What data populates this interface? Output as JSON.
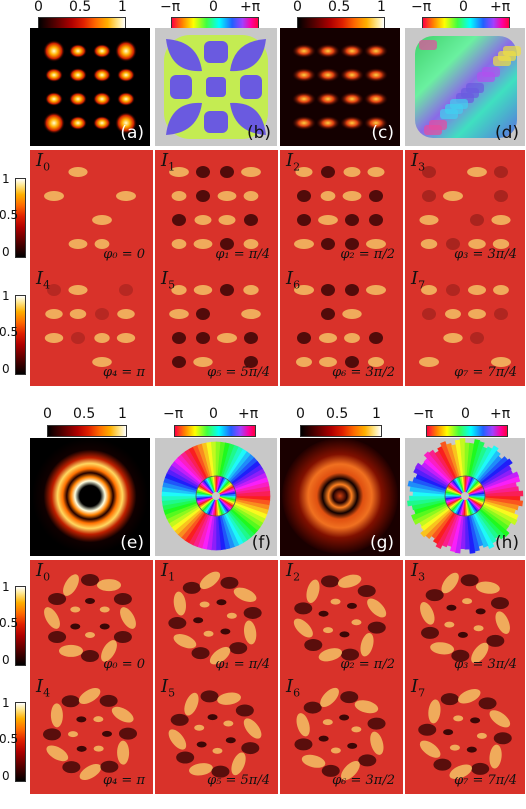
{
  "colorbars": {
    "intensity": {
      "min": "0",
      "mid": "0.5",
      "max": "1"
    },
    "phase": {
      "min": "−π",
      "mid": "0",
      "max": "+π"
    }
  },
  "vertical_colorbar": {
    "top": "1",
    "mid": "0.5",
    "bottom": "0"
  },
  "top_panels": {
    "a": "(a)",
    "b": "(b)",
    "c": "(c)",
    "d": "(d)"
  },
  "bottom_panels": {
    "e": "(e)",
    "f": "(f)",
    "g": "(g)",
    "h": "(h)"
  },
  "tiles": [
    {
      "name": "I",
      "sub": "0",
      "phase": "φ₀ = 0"
    },
    {
      "name": "I",
      "sub": "1",
      "phase": "φ₁ = π/4"
    },
    {
      "name": "I",
      "sub": "2",
      "phase": "φ₂ = π/2"
    },
    {
      "name": "I",
      "sub": "3",
      "phase": "φ₃ = 3π/4"
    },
    {
      "name": "I",
      "sub": "4",
      "phase": "φ₄ = π"
    },
    {
      "name": "I",
      "sub": "5",
      "phase": "φ₅ = 5π/4"
    },
    {
      "name": "I",
      "sub": "6",
      "phase": "φ₆ = 3π/2"
    },
    {
      "name": "I",
      "sub": "7",
      "phase": "φ₇ = 7π/4"
    }
  ],
  "colors": {
    "tile_background": "#d9322a",
    "phase_panel_background": "#c8c8c8"
  }
}
